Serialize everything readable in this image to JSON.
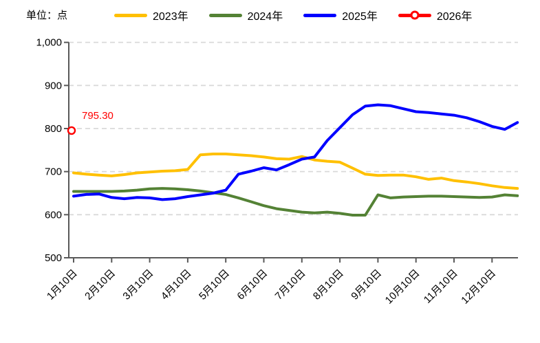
{
  "title": {
    "unit_label": "单位：点"
  },
  "legend": [
    {
      "label": "2023年",
      "color": "#FFC000",
      "marker": false
    },
    {
      "label": "2024年",
      "color": "#548235",
      "marker": false
    },
    {
      "label": "2025年",
      "color": "#0000FF",
      "marker": false
    },
    {
      "label": "2026年",
      "color": "#FF0000",
      "marker": true
    }
  ],
  "chart_data": {
    "type": "line",
    "title": "",
    "xlabel": "",
    "ylabel": "单位：点",
    "ylim": [
      500,
      1000
    ],
    "ytick_values": [
      500,
      600,
      700,
      800,
      900,
      1000
    ],
    "ytick_labels": [
      "500",
      "600",
      "700",
      "800",
      "900",
      "1,000"
    ],
    "x_tick_labels": [
      "1月10日",
      "2月10日",
      "3月10日",
      "4月10日",
      "5月10日",
      "6月10日",
      "7月10日",
      "8月10日",
      "9月10日",
      "10月10日",
      "11月10日",
      "12月10日"
    ],
    "x_sampling": "three points per month (every ~10 days), index i maps to month i/3 after Jan 10",
    "grid": "horizontal dashed",
    "legend_position": "top",
    "series": [
      {
        "name": "2023年",
        "color": "#FFC000",
        "values": [
          697,
          694,
          692,
          690,
          693,
          697,
          699,
          701,
          702,
          705,
          739,
          741,
          741,
          739,
          737,
          734,
          730,
          729,
          735,
          727,
          724,
          722,
          708,
          694,
          691,
          692,
          692,
          688,
          682,
          685,
          679,
          676,
          672,
          667,
          663,
          661
        ]
      },
      {
        "name": "2024年",
        "color": "#548235",
        "values": [
          654,
          654,
          654,
          654,
          655,
          657,
          660,
          661,
          660,
          658,
          655,
          651,
          647,
          639,
          630,
          621,
          614,
          610,
          606,
          604,
          606,
          603,
          599,
          599,
          646,
          639,
          641,
          642,
          643,
          643,
          642,
          641,
          640,
          641,
          646,
          644
        ]
      },
      {
        "name": "2025年",
        "color": "#0000FF",
        "values": [
          643,
          647,
          648,
          640,
          637,
          640,
          639,
          635,
          637,
          642,
          646,
          650,
          657,
          694,
          701,
          709,
          704,
          716,
          729,
          734,
          772,
          802,
          832,
          852,
          855,
          853,
          846,
          839,
          837,
          834,
          831,
          825,
          816,
          805,
          798,
          814
        ]
      },
      {
        "name": "2026年",
        "color": "#FF0000",
        "marker": "open-circle",
        "values": [
          795.3
        ],
        "annotation": "795.30"
      }
    ]
  }
}
